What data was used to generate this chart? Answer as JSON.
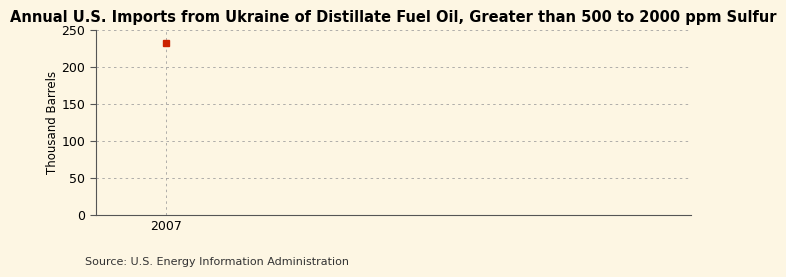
{
  "title": "Annual U.S. Imports from Ukraine of Distillate Fuel Oil, Greater than 500 to 2000 ppm Sulfur",
  "ylabel": "Thousand Barrels",
  "source": "Source: U.S. Energy Information Administration",
  "x_data": [
    2007
  ],
  "y_data": [
    233
  ],
  "marker_color": "#cc2200",
  "marker_style": "s",
  "marker_size": 4,
  "ylim": [
    0,
    250
  ],
  "yticks": [
    0,
    50,
    100,
    150,
    200,
    250
  ],
  "xlim": [
    2006.4,
    2011.5
  ],
  "xticks": [
    2007
  ],
  "background_color": "#fdf6e3",
  "grid_color": "#999999",
  "spine_color": "#555555",
  "title_fontsize": 10.5,
  "label_fontsize": 8.5,
  "tick_fontsize": 9,
  "source_fontsize": 8
}
